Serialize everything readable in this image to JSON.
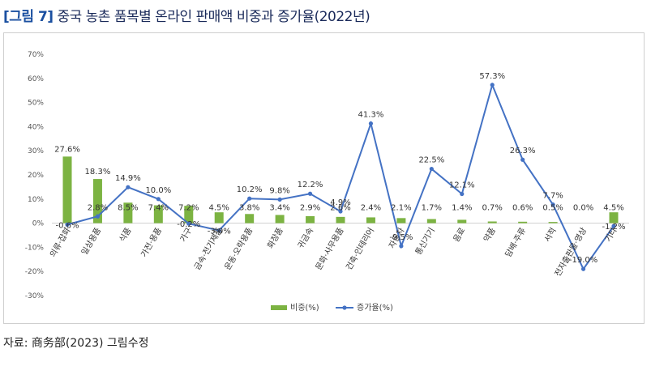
{
  "header": {
    "figure_label": "[그림 7]",
    "title": "중국 농촌 품목별 온라인 판매액 비중과 증가율(2022년)"
  },
  "source": "자료: 商务部(2023) 그림수정",
  "colors": {
    "bar": "#7cb342",
    "line": "#4472c4"
  },
  "chart_data": {
    "type": "bar",
    "title": "중국 농촌 품목별 온라인 판매액 비중과 증가율(2022년)",
    "ylim": [
      -30,
      70
    ],
    "yticks": [
      "70%",
      "60%",
      "50%",
      "40%",
      "30%",
      "20%",
      "10%",
      "0%",
      "-10%",
      "-20%",
      "-30%"
    ],
    "ytick_values": [
      70,
      60,
      50,
      40,
      30,
      20,
      10,
      0,
      -10,
      -20,
      -30
    ],
    "grid": false,
    "legend_position": "bottom",
    "categories": [
      "의류·잡화",
      "일상용품",
      "식품",
      "가전·용품",
      "가구",
      "금속·전기제품",
      "운동·오락용품",
      "화장품",
      "귀금속",
      "문화·사무용품",
      "건축·인테리어",
      "자동차",
      "통신기기",
      "음료",
      "약품",
      "담배·주류",
      "서적",
      "전자출판물·영상",
      "기타"
    ],
    "series": [
      {
        "name": "비중(%)",
        "kind": "bar",
        "values": [
          27.6,
          18.3,
          8.5,
          7.4,
          7.2,
          4.5,
          3.8,
          3.4,
          2.9,
          2.6,
          2.4,
          2.1,
          1.7,
          1.4,
          0.7,
          0.6,
          0.5,
          0.0,
          4.5
        ],
        "labels": [
          "27.6%",
          "18.3%",
          "8.5%",
          "7.4%",
          "7.2%",
          "4.5%",
          "3.8%",
          "3.4%",
          "2.9%",
          "2.6%",
          "2.4%",
          "2.1%",
          "1.7%",
          "1.4%",
          "0.7%",
          "0.6%",
          "0.5%",
          "0.0%",
          "4.5%"
        ]
      },
      {
        "name": "증가율(%)",
        "kind": "line",
        "values": [
          -0.6,
          2.8,
          14.9,
          10.0,
          -0.2,
          -3.0,
          10.2,
          9.8,
          12.2,
          4.9,
          41.3,
          -9.5,
          22.5,
          12.1,
          57.3,
          26.3,
          7.7,
          -19.0,
          -1.2
        ],
        "labels": [
          "-0.6%",
          "2.8%",
          "14.9%",
          "10.0%",
          "-0.2%",
          "-3.0%",
          "10.2%",
          "9.8%",
          "12.2%",
          "4.9%",
          "41.3%",
          "-9.5%",
          "22.5%",
          "12.1%",
          "57.3%",
          "26.3%",
          "7.7%",
          "-19.0%",
          "-1.2%"
        ]
      }
    ]
  }
}
